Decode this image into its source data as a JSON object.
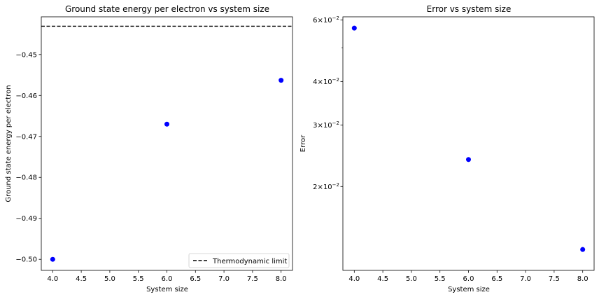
{
  "chart_data": [
    {
      "type": "scatter",
      "title": "Ground state energy per electron vs system size",
      "xlabel": "System size",
      "ylabel": "Ground state energy per electron",
      "xlim": [
        3.8,
        8.2
      ],
      "ylim": [
        -0.5027,
        -0.4408
      ],
      "x_ticks": [
        4.0,
        4.5,
        5.0,
        5.5,
        6.0,
        6.5,
        7.0,
        7.5,
        8.0
      ],
      "x_tick_labels": [
        "4.0",
        "4.5",
        "5.0",
        "5.5",
        "6.0",
        "6.5",
        "7.0",
        "7.5",
        "8.0"
      ],
      "y_ticks": [
        -0.5,
        -0.49,
        -0.48,
        -0.47,
        -0.46,
        -0.45
      ],
      "y_tick_labels": [
        "−0.50",
        "−0.49",
        "−0.48",
        "−0.47",
        "−0.46",
        "−0.45"
      ],
      "series": [
        {
          "x": [
            4,
            6,
            8
          ],
          "y": [
            -0.5,
            -0.467,
            -0.4563
          ],
          "color": "#0000ff",
          "marker": "circle"
        }
      ],
      "reference_line": {
        "y": -0.4431,
        "label": "Thermodynamic limit",
        "style": "dashed",
        "color": "#000000"
      },
      "legend": {
        "position": "lower-right",
        "entries": [
          "Thermodynamic limit"
        ]
      },
      "grid": false
    },
    {
      "type": "scatter",
      "title": "Error vs system size",
      "xlabel": "System size",
      "ylabel": "Error",
      "yscale": "log",
      "xlim": [
        3.8,
        8.2
      ],
      "ylim": [
        0.0115,
        0.0613
      ],
      "x_ticks": [
        4.0,
        4.5,
        5.0,
        5.5,
        6.0,
        6.5,
        7.0,
        7.5,
        8.0
      ],
      "x_tick_labels": [
        "4.0",
        "4.5",
        "5.0",
        "5.5",
        "6.0",
        "6.5",
        "7.0",
        "7.5",
        "8.0"
      ],
      "y_ticks_major": [
        0.02,
        0.03,
        0.04,
        0.06
      ],
      "y_tick_labels": [
        {
          "mantissa": "2",
          "base": "10",
          "exp": "−2"
        },
        {
          "mantissa": "3",
          "base": "10",
          "exp": "−2"
        },
        {
          "mantissa": "4",
          "base": "10",
          "exp": "−2"
        },
        {
          "mantissa": "6",
          "base": "10",
          "exp": "−2"
        }
      ],
      "y_ticks_minor": [
        0.05
      ],
      "series": [
        {
          "x": [
            4,
            6,
            8
          ],
          "y": [
            0.0569,
            0.0239,
            0.0132
          ],
          "color": "#0000ff",
          "marker": "circle"
        }
      ],
      "grid": false
    }
  ]
}
